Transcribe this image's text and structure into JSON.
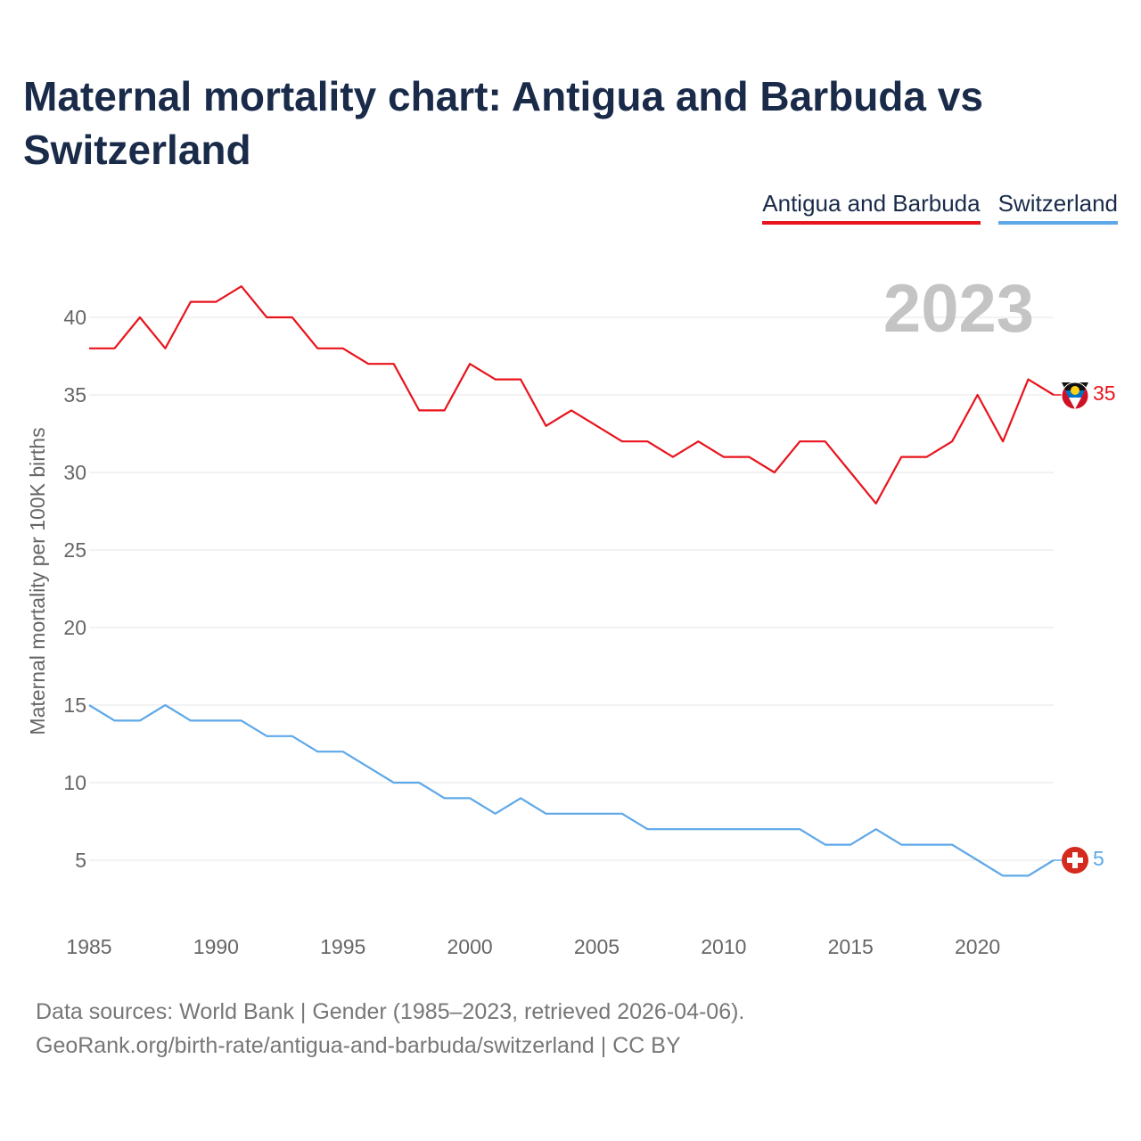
{
  "title": "Maternal mortality chart: Antigua and Barbuda vs Switzerland",
  "legend": {
    "antigua": "Antigua and Barbuda",
    "switzerland": "Switzerland"
  },
  "watermark_year": "2023",
  "footer": {
    "line1": "Data sources: World Bank | Gender (1985–2023, retrieved 2026-04-06).",
    "line2": "GeoRank.org/birth-rate/antigua-and-barbuda/switzerland | CC BY"
  },
  "colors": {
    "antigua": "#e8141c",
    "switzerland": "#5ea8e8",
    "grid": "#e6e6e6",
    "text": "#666666"
  },
  "chart_data": {
    "type": "line",
    "title": "Maternal mortality chart: Antigua and Barbuda vs Switzerland",
    "xlabel": "",
    "ylabel": "Maternal mortality per 100K births",
    "xlim": [
      1985,
      2023
    ],
    "ylim": [
      2,
      43
    ],
    "yticks": [
      5,
      10,
      15,
      20,
      25,
      30,
      35,
      40
    ],
    "xticks": [
      1985,
      1990,
      1995,
      2000,
      2005,
      2010,
      2015,
      2020
    ],
    "x": [
      1985,
      1986,
      1987,
      1988,
      1989,
      1990,
      1991,
      1992,
      1993,
      1994,
      1995,
      1996,
      1997,
      1998,
      1999,
      2000,
      2001,
      2002,
      2003,
      2004,
      2005,
      2006,
      2007,
      2008,
      2009,
      2010,
      2011,
      2012,
      2013,
      2014,
      2015,
      2016,
      2017,
      2018,
      2019,
      2020,
      2021,
      2022,
      2023
    ],
    "series": [
      {
        "name": "Antigua and Barbuda",
        "color": "#e8141c",
        "end_label": "35",
        "values": [
          38,
          38,
          40,
          38,
          41,
          41,
          42,
          40,
          40,
          38,
          38,
          37,
          37,
          34,
          34,
          37,
          36,
          36,
          33,
          34,
          33,
          32,
          32,
          31,
          32,
          31,
          31,
          30,
          32,
          32,
          30,
          28,
          31,
          31,
          32,
          35,
          32,
          36,
          35
        ]
      },
      {
        "name": "Switzerland",
        "color": "#5ea8e8",
        "end_label": "5",
        "values": [
          15,
          14,
          14,
          15,
          14,
          14,
          14,
          13,
          13,
          12,
          12,
          11,
          10,
          10,
          9,
          9,
          8,
          9,
          8,
          8,
          8,
          8,
          7,
          7,
          7,
          7,
          7,
          7,
          7,
          6,
          6,
          7,
          6,
          6,
          6,
          5,
          4,
          4,
          5
        ]
      }
    ]
  }
}
